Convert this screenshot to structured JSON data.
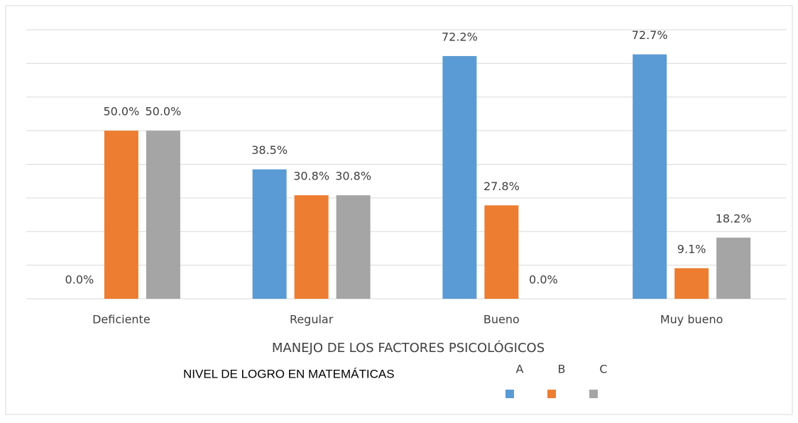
{
  "chart_data": {
    "type": "bar",
    "x_label": "MANEJO DE LOS FACTORES PSICOLÓGICOS",
    "legend_title": "NIVEL DE LOGRO EN MATEMÁTICAS",
    "categories": [
      "Deficiente",
      "Regular",
      "Bueno",
      "Muy bueno"
    ],
    "series": [
      {
        "name": "A",
        "color": "#5b9bd5",
        "values": [
          0.0,
          38.5,
          72.2,
          72.7
        ],
        "value_labels": [
          "0.0%",
          "38.5%",
          "72.2%",
          "72.7%"
        ]
      },
      {
        "name": "B",
        "color": "#ed7d31",
        "values": [
          50.0,
          30.8,
          27.8,
          9.1
        ],
        "value_labels": [
          "50.0%",
          "30.8%",
          "27.8%",
          "9.1%"
        ]
      },
      {
        "name": "C",
        "color": "#a5a5a5",
        "values": [
          50.0,
          30.8,
          0.0,
          18.2
        ],
        "value_labels": [
          "50.0%",
          "30.8%",
          "0.0%",
          "18.2%"
        ]
      }
    ],
    "ylim": [
      0,
      80
    ],
    "yticks": [
      0,
      10,
      20,
      30,
      40,
      50,
      60,
      70,
      80
    ],
    "grid": true,
    "legend": "bottom"
  }
}
